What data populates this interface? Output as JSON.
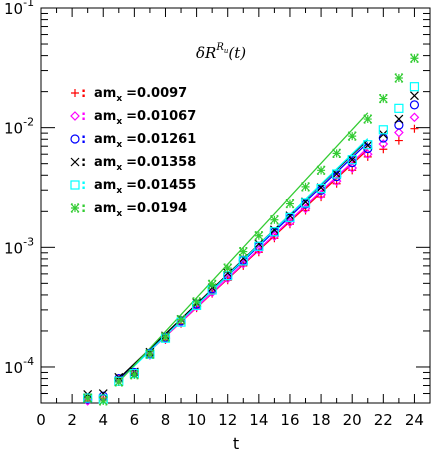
{
  "chart_data": {
    "type": "scatter",
    "title": "δR",
    "title_sup": "R",
    "title_sup_sub": "u",
    "title_arg": "(t)",
    "xlabel": "t",
    "ylabel": "",
    "xlim": [
      0,
      25
    ],
    "ylim": [
      5e-05,
      0.1
    ],
    "yscale": "log",
    "x_ticks": [
      0,
      2,
      4,
      6,
      8,
      10,
      12,
      14,
      16,
      18,
      20,
      22,
      24
    ],
    "y_ticks": [
      {
        "value": 0.1,
        "base": "10",
        "exp": "-1"
      },
      {
        "value": 0.01,
        "base": "10",
        "exp": "-2"
      },
      {
        "value": 0.001,
        "base": "10",
        "exp": "-3"
      },
      {
        "value": 0.0001,
        "base": "10",
        "exp": "-4"
      }
    ],
    "legend_position": "top-left",
    "legend_label_prefix": "am",
    "legend_label_sub": "x",
    "series": [
      {
        "name": "=0.0097",
        "marker": "+",
        "color": "#ff0000",
        "x": [
          3,
          4,
          5,
          6,
          7,
          8,
          9,
          10,
          11,
          12,
          13,
          14,
          15,
          16,
          17,
          18,
          19,
          20,
          21,
          22,
          23,
          24
        ],
        "y": [
          5.2e-05,
          5.5e-05,
          8e-05,
          8.8e-05,
          0.000125,
          0.000168,
          0.00023,
          0.00031,
          0.00041,
          0.00053,
          0.0007,
          0.00091,
          0.00119,
          0.00156,
          0.00203,
          0.00263,
          0.0034,
          0.0044,
          0.0057,
          0.0066,
          0.0078,
          0.0098
        ],
        "fit": {
          "x": [
            5,
            21
          ],
          "y": [
            7.85e-05,
            0.00655
          ]
        }
      },
      {
        "name": "=0.01067",
        "marker": "diamond",
        "color": "#ff00ff",
        "x": [
          3,
          4,
          5,
          6,
          7,
          8,
          9,
          10,
          11,
          12,
          13,
          14,
          15,
          16,
          17,
          18,
          19,
          20,
          21,
          22,
          23,
          24
        ],
        "y": [
          5.2e-05,
          5.5e-05,
          7.8e-05,
          8.8e-05,
          0.000126,
          0.000172,
          0.000236,
          0.00032,
          0.00042,
          0.00055,
          0.00073,
          0.00095,
          0.00124,
          0.00162,
          0.00211,
          0.00275,
          0.00357,
          0.0046,
          0.006,
          0.0073,
          0.0091,
          0.0122
        ],
        "fit": {
          "x": [
            5,
            21
          ],
          "y": [
            7.8e-05,
            0.0068
          ]
        }
      },
      {
        "name": "=0.01261",
        "marker": "circle",
        "color": "#0000ff",
        "x": [
          3,
          4,
          5,
          6,
          7,
          8,
          9,
          10,
          11,
          12,
          13,
          14,
          15,
          16,
          17,
          18,
          19,
          20,
          21,
          22,
          23,
          24
        ],
        "y": [
          5.4e-05,
          5.7e-05,
          8e-05,
          9e-05,
          0.00013,
          0.000177,
          0.000243,
          0.000335,
          0.00045,
          0.00058,
          0.00078,
          0.00102,
          0.00134,
          0.00176,
          0.0023,
          0.003,
          0.0039,
          0.0051,
          0.0067,
          0.0082,
          0.0105,
          0.0155
        ],
        "fit": {
          "x": [
            5,
            21
          ],
          "y": [
            7.9e-05,
            0.0075
          ]
        }
      },
      {
        "name": "=0.01358",
        "marker": "x",
        "color": "#000000",
        "x": [
          3,
          4,
          5,
          6,
          7,
          8,
          9,
          10,
          11,
          12,
          13,
          14,
          15,
          16,
          17,
          18,
          19,
          20,
          21,
          22,
          23,
          24
        ],
        "y": [
          5.9e-05,
          6e-05,
          8.2e-05,
          9.1e-05,
          0.000133,
          0.000182,
          0.00025,
          0.000345,
          0.00046,
          0.00061,
          0.00081,
          0.00107,
          0.0014,
          0.00184,
          0.0024,
          0.00315,
          0.0041,
          0.0054,
          0.0071,
          0.0088,
          0.0118,
          0.0185
        ],
        "fit": {
          "x": [
            5,
            21
          ],
          "y": [
            8e-05,
            0.0079
          ]
        }
      },
      {
        "name": "=0.01455",
        "marker": "square",
        "color": "#00ffff",
        "x": [
          3,
          4,
          5,
          6,
          7,
          8,
          9,
          10,
          11,
          12,
          13,
          14,
          15,
          16,
          17,
          18,
          19,
          20,
          21,
          22,
          23,
          24
        ],
        "y": [
          5.5e-05,
          5.4e-05,
          7.6e-05,
          8.8e-05,
          0.000128,
          0.000174,
          0.000237,
          0.000327,
          0.00044,
          0.00058,
          0.00077,
          0.00102,
          0.00135,
          0.00178,
          0.00235,
          0.0031,
          0.0041,
          0.0054,
          0.0072,
          0.0096,
          0.0145,
          0.022
        ],
        "fit": {
          "x": [
            5,
            21
          ],
          "y": [
            7.6e-05,
            0.0081
          ]
        }
      },
      {
        "name": "=0.0194",
        "marker": "starsq",
        "color": "#33cc33",
        "x": [
          3,
          4,
          5,
          6,
          7,
          8,
          9,
          10,
          11,
          12,
          13,
          14,
          15,
          16,
          17,
          18,
          19,
          20,
          21,
          22,
          23,
          24
        ],
        "y": [
          5.5e-05,
          5.2e-05,
          7.5e-05,
          8.6e-05,
          0.000128,
          0.000178,
          0.000248,
          0.00035,
          0.00049,
          0.00067,
          0.00092,
          0.00125,
          0.0017,
          0.00232,
          0.0032,
          0.0044,
          0.0061,
          0.0085,
          0.0118,
          0.0175,
          0.026,
          0.038
        ],
        "fit": {
          "x": [
            5,
            21
          ],
          "y": [
            7.5e-05,
            0.0133
          ]
        }
      }
    ]
  }
}
